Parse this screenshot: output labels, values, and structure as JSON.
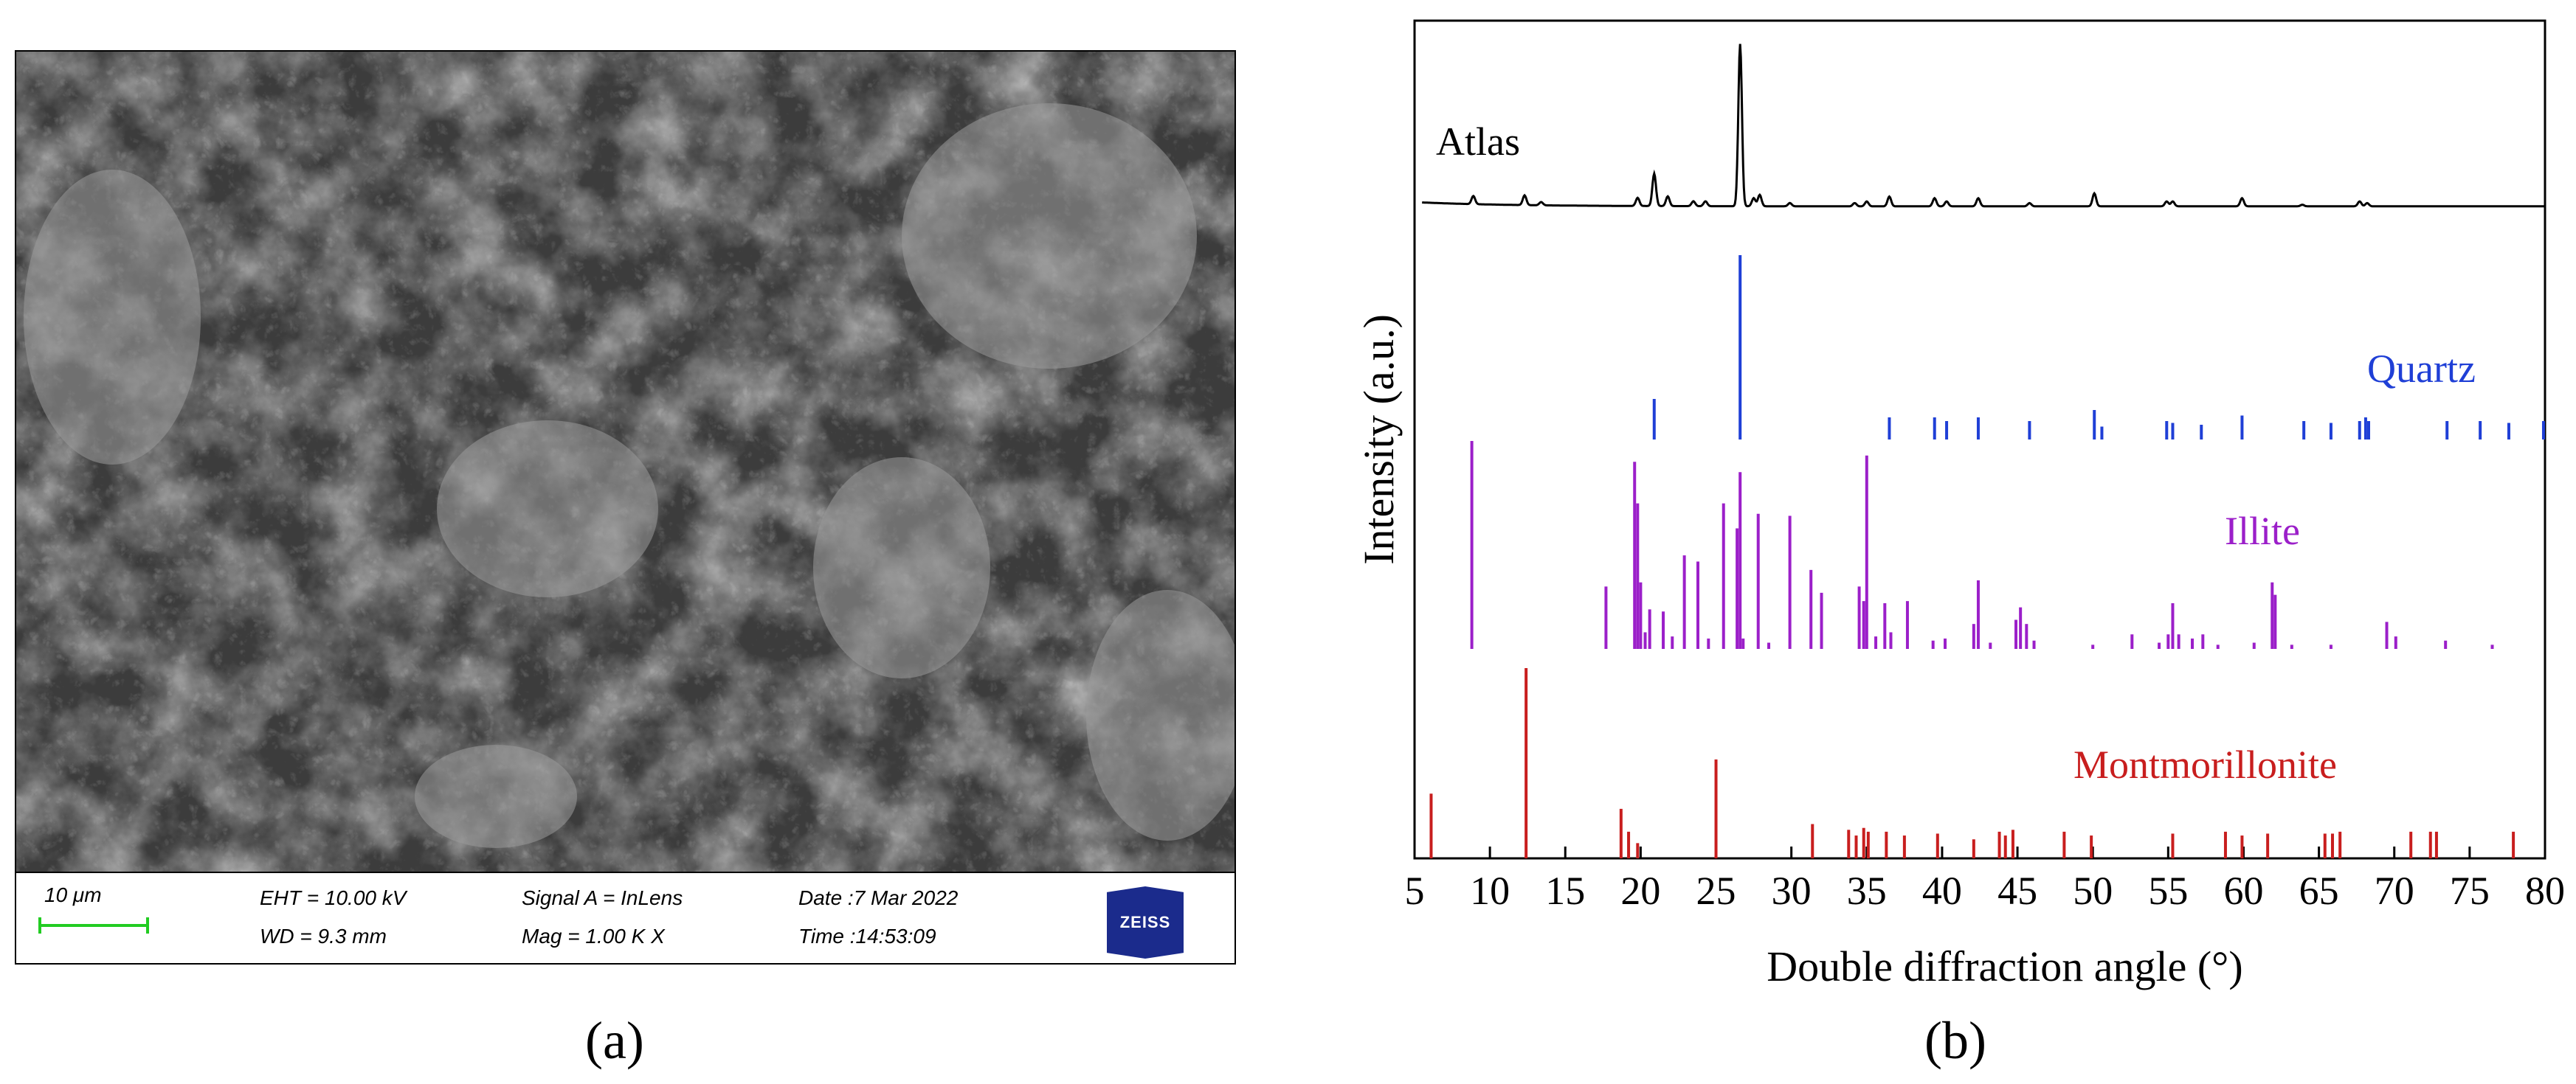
{
  "panel_a": {
    "caption": "(a)",
    "scale_bar_label": "10 μm",
    "eht": "EHT = 10.00 kV",
    "wd": "WD = 9.3 mm",
    "signal": "Signal A = InLens",
    "mag": "Mag = 1.00 K X",
    "date": "Date :7 Mar 2022",
    "time": "Time :14:53:09",
    "logo": "ZEISS",
    "colors": {
      "scale_bar": "#22cc22",
      "logo_bg": "#1b2b8c"
    }
  },
  "panel_b": {
    "caption": "(b)"
  },
  "chart_data": {
    "type": "line",
    "xlabel": "Double diffraction angle (°)",
    "ylabel": "Intensity (a.u.)",
    "xlim": [
      5,
      80
    ],
    "xticks": [
      5,
      10,
      15,
      20,
      25,
      30,
      35,
      40,
      45,
      50,
      55,
      60,
      65,
      70,
      75,
      80
    ],
    "grid": false,
    "series": [
      {
        "name": "Atlas",
        "kind": "pattern",
        "color": "#000000",
        "baseline": 0.04,
        "peaks": [
          [
            8.9,
            0.05
          ],
          [
            12.3,
            0.06
          ],
          [
            13.4,
            0.02
          ],
          [
            19.8,
            0.05
          ],
          [
            20.9,
            0.2
          ],
          [
            21.8,
            0.06
          ],
          [
            23.5,
            0.03
          ],
          [
            24.3,
            0.03
          ],
          [
            26.6,
            1.0
          ],
          [
            27.5,
            0.05
          ],
          [
            27.9,
            0.07
          ],
          [
            29.9,
            0.02
          ],
          [
            34.2,
            0.02
          ],
          [
            35.0,
            0.03
          ],
          [
            36.5,
            0.06
          ],
          [
            39.5,
            0.05
          ],
          [
            40.3,
            0.03
          ],
          [
            42.4,
            0.05
          ],
          [
            45.8,
            0.02
          ],
          [
            50.1,
            0.08
          ],
          [
            54.9,
            0.03
          ],
          [
            55.3,
            0.03
          ],
          [
            59.9,
            0.05
          ],
          [
            63.9,
            0.01
          ],
          [
            67.7,
            0.03
          ],
          [
            68.2,
            0.02
          ]
        ]
      },
      {
        "name": "Quartz",
        "kind": "sticks",
        "color": "#1f3fd6",
        "sticks": [
          [
            20.9,
            0.22
          ],
          [
            26.6,
            1.0
          ],
          [
            36.5,
            0.12
          ],
          [
            39.5,
            0.12
          ],
          [
            40.3,
            0.1
          ],
          [
            42.4,
            0.12
          ],
          [
            45.8,
            0.1
          ],
          [
            50.1,
            0.16
          ],
          [
            50.6,
            0.07
          ],
          [
            54.9,
            0.1
          ],
          [
            55.3,
            0.09
          ],
          [
            57.2,
            0.08
          ],
          [
            59.9,
            0.13
          ],
          [
            64.0,
            0.1
          ],
          [
            65.8,
            0.09
          ],
          [
            67.7,
            0.1
          ],
          [
            68.1,
            0.12
          ],
          [
            68.3,
            0.1
          ],
          [
            73.5,
            0.1
          ],
          [
            75.7,
            0.1
          ],
          [
            77.6,
            0.09
          ],
          [
            79.9,
            0.1
          ]
        ]
      },
      {
        "name": "Illite",
        "kind": "sticks",
        "color": "#9b1fc9",
        "sticks": [
          [
            8.8,
            1.0
          ],
          [
            17.7,
            0.3
          ],
          [
            19.6,
            0.9
          ],
          [
            19.8,
            0.7
          ],
          [
            20.0,
            0.32
          ],
          [
            20.3,
            0.08
          ],
          [
            20.6,
            0.19
          ],
          [
            21.5,
            0.18
          ],
          [
            22.1,
            0.06
          ],
          [
            22.9,
            0.45
          ],
          [
            23.8,
            0.42
          ],
          [
            24.5,
            0.05
          ],
          [
            25.5,
            0.7
          ],
          [
            26.4,
            0.58
          ],
          [
            26.6,
            0.85
          ],
          [
            26.8,
            0.05
          ],
          [
            27.8,
            0.65
          ],
          [
            28.5,
            0.03
          ],
          [
            29.9,
            0.64
          ],
          [
            31.3,
            0.38
          ],
          [
            32.0,
            0.27
          ],
          [
            34.5,
            0.3
          ],
          [
            34.8,
            0.23
          ],
          [
            35.0,
            0.93
          ],
          [
            35.6,
            0.06
          ],
          [
            36.2,
            0.22
          ],
          [
            36.6,
            0.08
          ],
          [
            37.7,
            0.23
          ],
          [
            39.4,
            0.04
          ],
          [
            40.2,
            0.05
          ],
          [
            42.1,
            0.12
          ],
          [
            42.4,
            0.33
          ],
          [
            43.2,
            0.03
          ],
          [
            44.9,
            0.14
          ],
          [
            45.2,
            0.2
          ],
          [
            45.6,
            0.12
          ],
          [
            46.1,
            0.04
          ],
          [
            50.0,
            0.02
          ],
          [
            52.6,
            0.07
          ],
          [
            54.4,
            0.03
          ],
          [
            55.0,
            0.07
          ],
          [
            55.3,
            0.22
          ],
          [
            55.7,
            0.07
          ],
          [
            56.6,
            0.05
          ],
          [
            57.3,
            0.07
          ],
          [
            58.3,
            0.02
          ],
          [
            60.7,
            0.03
          ],
          [
            61.9,
            0.32
          ],
          [
            62.1,
            0.26
          ],
          [
            63.2,
            0.02
          ],
          [
            65.8,
            0.02
          ],
          [
            69.5,
            0.13
          ],
          [
            70.1,
            0.06
          ],
          [
            73.4,
            0.04
          ],
          [
            76.5,
            0.02
          ]
        ]
      },
      {
        "name": "Montmorillonite",
        "kind": "sticks",
        "color": "#c81e1e",
        "sticks": [
          [
            6.1,
            0.34
          ],
          [
            12.4,
            1.0
          ],
          [
            18.7,
            0.26
          ],
          [
            19.2,
            0.14
          ],
          [
            19.8,
            0.08
          ],
          [
            25.0,
            0.52
          ],
          [
            31.4,
            0.18
          ],
          [
            33.8,
            0.15
          ],
          [
            34.3,
            0.12
          ],
          [
            34.8,
            0.16
          ],
          [
            35.1,
            0.14
          ],
          [
            36.3,
            0.14
          ],
          [
            37.5,
            0.12
          ],
          [
            39.7,
            0.13
          ],
          [
            42.1,
            0.1
          ],
          [
            43.8,
            0.14
          ],
          [
            44.2,
            0.12
          ],
          [
            44.7,
            0.15
          ],
          [
            48.1,
            0.14
          ],
          [
            49.9,
            0.12
          ],
          [
            55.3,
            0.13
          ],
          [
            58.8,
            0.14
          ],
          [
            59.9,
            0.12
          ],
          [
            61.6,
            0.13
          ],
          [
            65.4,
            0.13
          ],
          [
            65.9,
            0.13
          ],
          [
            66.4,
            0.14
          ],
          [
            71.1,
            0.14
          ],
          [
            72.4,
            0.14
          ],
          [
            72.8,
            0.14
          ],
          [
            77.9,
            0.14
          ]
        ]
      }
    ]
  }
}
